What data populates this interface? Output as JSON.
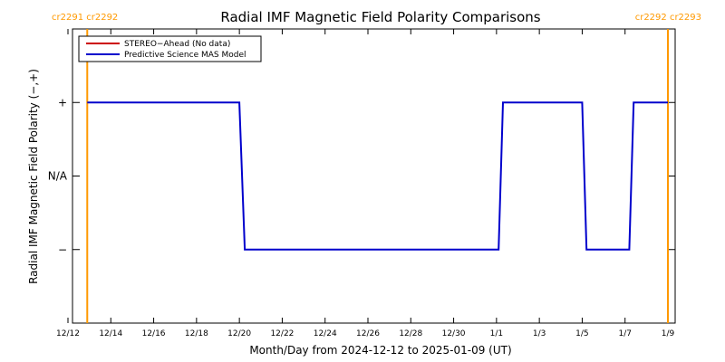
{
  "chart_data": {
    "type": "line",
    "title": "Radial IMF Magnetic Field Polarity Comparisons",
    "xlabel": "Month/Day from 2024-12-12 to 2025-01-09 (UT)",
    "ylabel": "Radial IMF Magnetic Field Polarity (−,+)",
    "x_tick_labels": [
      "12/12",
      "12/14",
      "12/16",
      "12/18",
      "12/20",
      "12/22",
      "12/24",
      "12/26",
      "12/28",
      "12/30",
      "1/1",
      "1/3",
      "1/5",
      "1/7",
      "1/9"
    ],
    "x_tick_days": [
      0,
      2,
      4,
      6,
      8,
      10,
      12,
      14,
      16,
      18,
      20,
      22,
      24,
      26,
      28
    ],
    "xlim_days": [
      0,
      28
    ],
    "y_tick_labels": [
      {
        "label": "+",
        "value": 1
      },
      {
        "label": "N/A",
        "value": 0
      },
      {
        "label": "−",
        "value": -1
      }
    ],
    "ylim": [
      -2,
      2
    ],
    "carrington_markers": [
      {
        "day": 0.9,
        "label": "cr2291 cr2292"
      },
      {
        "day": 28.0,
        "label": "cr2292 cr2293"
      }
    ],
    "legend_position": "top-left",
    "series": [
      {
        "name": "STEREO−Ahead (No data)",
        "color": "#cc0000",
        "points": []
      },
      {
        "name": "Predictive Science MAS Model",
        "color": "#0000cc",
        "points": [
          [
            0.9,
            1
          ],
          [
            8.0,
            1
          ],
          [
            8.25,
            -1
          ],
          [
            20.1,
            -1
          ],
          [
            20.3,
            1
          ],
          [
            24.0,
            1
          ],
          [
            24.2,
            -1
          ],
          [
            26.2,
            -1
          ],
          [
            26.4,
            1
          ],
          [
            28.0,
            1
          ]
        ]
      }
    ],
    "marker_color": "#ff9900"
  }
}
